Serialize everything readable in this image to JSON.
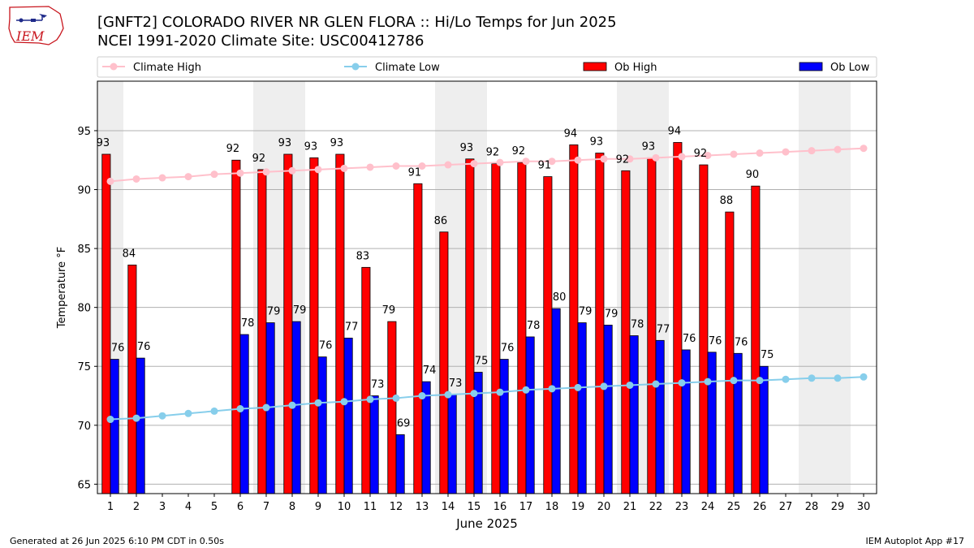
{
  "header": {
    "title_line1": "[GNFT2] COLORADO RIVER NR GLEN FLORA :: Hi/Lo Temps for Jun 2025",
    "title_line2": "NCEI 1991-2020 Climate Site: USC00412786"
  },
  "logo": {
    "text": "IEM"
  },
  "footer": {
    "generated": "Generated at 26 Jun 2025 6:10 PM CDT in 0.50s",
    "app": "IEM Autoplot App #17"
  },
  "colors": {
    "ob_high": "#ff0000",
    "ob_low": "#0000ff",
    "climate_high": "#ffc0cb",
    "climate_low": "#87ceeb",
    "weekend_band": "#eeeeee",
    "grid": "#b0b0b0"
  },
  "chart_data": {
    "type": "bar",
    "title": "[GNFT2] COLORADO RIVER NR GLEN FLORA :: Hi/Lo Temps for Jun 2025",
    "xlabel": "June 2025",
    "ylabel": "Temperature °F",
    "ylim": [
      64.2,
      99.2
    ],
    "xlim": [
      0.5,
      30.5
    ],
    "yticks": [
      65,
      70,
      75,
      80,
      85,
      90,
      95
    ],
    "grid": true,
    "legend_position": "top",
    "days": [
      1,
      2,
      3,
      4,
      5,
      6,
      7,
      8,
      9,
      10,
      11,
      12,
      13,
      14,
      15,
      16,
      17,
      18,
      19,
      20,
      21,
      22,
      23,
      24,
      25,
      26,
      27,
      28,
      29,
      30
    ],
    "weekend_bands": [
      [
        0.5,
        1.5
      ],
      [
        6.5,
        8.5
      ],
      [
        13.5,
        15.5
      ],
      [
        20.5,
        22.5
      ],
      [
        27.5,
        29.5
      ]
    ],
    "series": [
      {
        "name": "Ob High",
        "kind": "bar",
        "values": [
          93,
          84,
          null,
          null,
          null,
          92,
          92,
          93,
          93,
          93,
          83,
          79,
          91,
          86,
          93,
          92,
          92,
          91,
          94,
          93,
          92,
          93,
          94,
          92,
          88,
          90,
          null,
          null,
          null,
          null
        ],
        "heights": [
          93.0,
          83.6,
          null,
          null,
          null,
          92.5,
          91.7,
          93.0,
          92.7,
          93.0,
          83.4,
          78.8,
          90.5,
          86.4,
          92.6,
          92.2,
          92.3,
          91.1,
          93.8,
          93.1,
          91.6,
          92.7,
          94.0,
          92.1,
          88.1,
          90.3,
          null,
          null,
          null,
          null
        ]
      },
      {
        "name": "Ob Low",
        "kind": "bar",
        "values": [
          76,
          76,
          null,
          null,
          null,
          78,
          79,
          79,
          76,
          77,
          73,
          69,
          74,
          73,
          75,
          76,
          78,
          80,
          79,
          79,
          78,
          77,
          76,
          76,
          76,
          75,
          null,
          null,
          null,
          null
        ],
        "heights": [
          75.6,
          75.7,
          null,
          null,
          null,
          77.7,
          78.7,
          78.8,
          75.8,
          77.4,
          72.5,
          69.2,
          73.7,
          72.6,
          74.5,
          75.6,
          77.5,
          79.9,
          78.7,
          78.5,
          77.6,
          77.2,
          76.4,
          76.2,
          76.1,
          75.0,
          null,
          null,
          null,
          null
        ]
      },
      {
        "name": "Climate High",
        "kind": "line",
        "values": [
          90.7,
          90.9,
          91.0,
          91.1,
          91.3,
          91.4,
          91.5,
          91.6,
          91.7,
          91.8,
          91.9,
          92.0,
          92.0,
          92.1,
          92.2,
          92.3,
          92.4,
          92.4,
          92.5,
          92.6,
          92.6,
          92.7,
          92.8,
          92.9,
          93.0,
          93.1,
          93.2,
          93.3,
          93.4,
          93.5
        ]
      },
      {
        "name": "Climate Low",
        "kind": "line",
        "values": [
          70.5,
          70.6,
          70.8,
          71.0,
          71.2,
          71.4,
          71.5,
          71.7,
          71.9,
          72.0,
          72.2,
          72.3,
          72.5,
          72.6,
          72.7,
          72.8,
          73.0,
          73.1,
          73.2,
          73.3,
          73.4,
          73.5,
          73.6,
          73.7,
          73.8,
          73.8,
          73.9,
          74.0,
          74.0,
          74.1
        ]
      }
    ]
  }
}
